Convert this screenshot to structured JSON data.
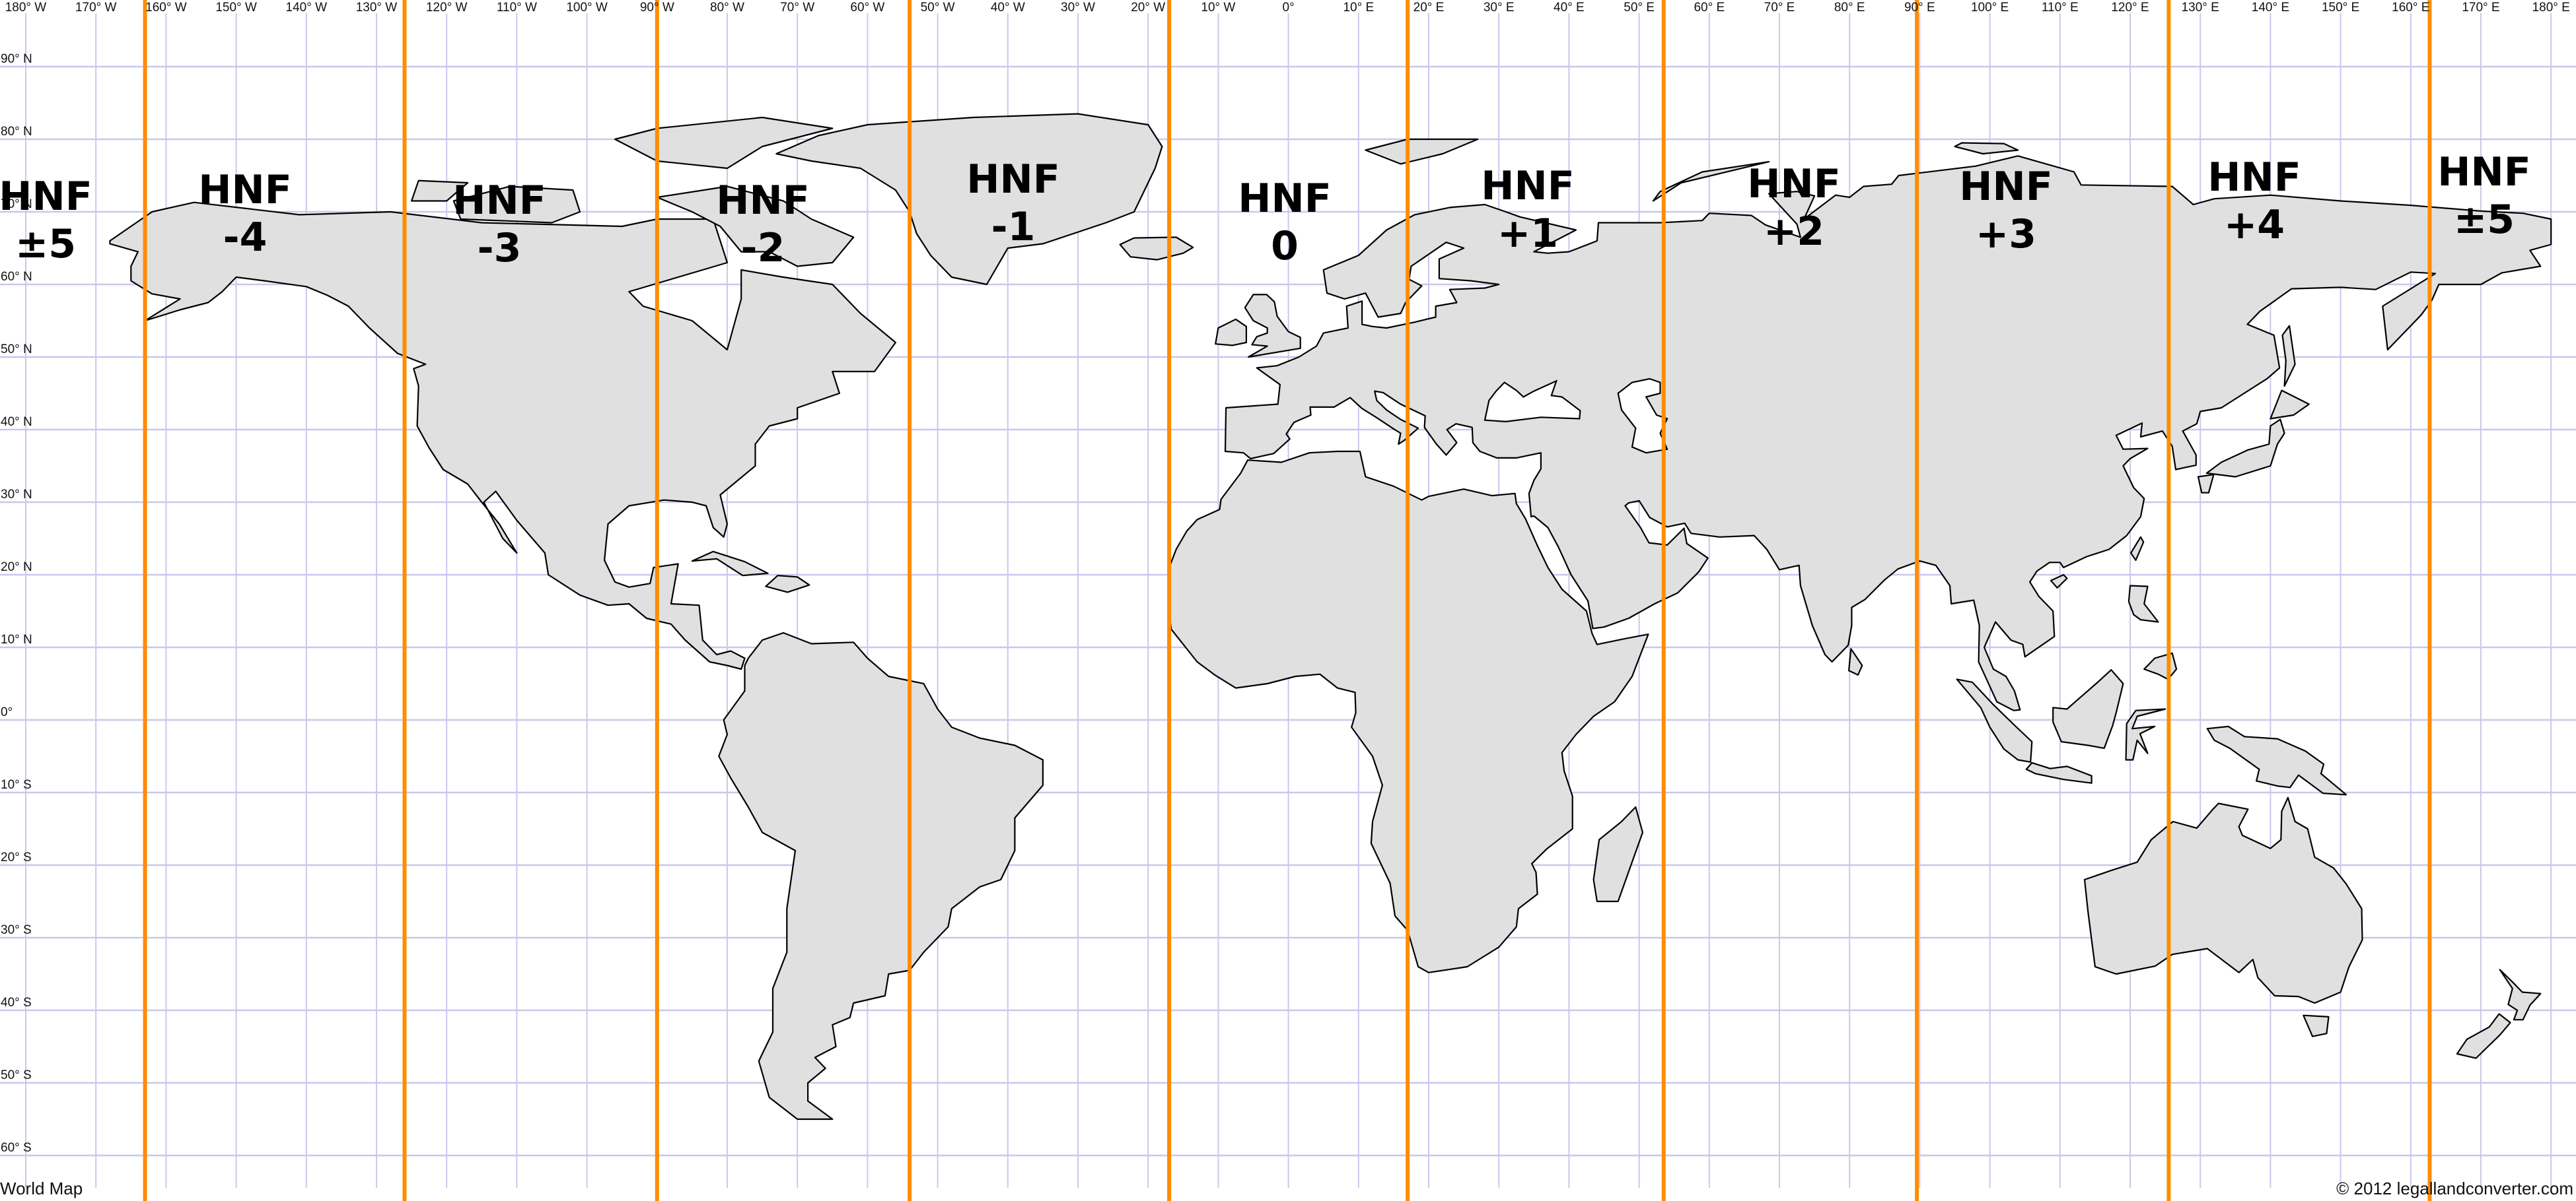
{
  "map": {
    "title": "World Map",
    "copyright": "© 2012 legallandconverter.com",
    "colors": {
      "land": "#e0e0e0",
      "coast": "#000000",
      "grid": "#c8c8ee",
      "zone_boundary": "#ff8c00",
      "water": "#ffffff"
    },
    "longitude_labels": [
      "180° W",
      "170° W",
      "160° W",
      "150° W",
      "140° W",
      "130° W",
      "120° W",
      "110° W",
      "100° W",
      "90° W",
      "80° W",
      "70° W",
      "60° W",
      "50° W",
      "40° W",
      "30° W",
      "20° W",
      "10° W",
      "0°",
      "10° E",
      "20° E",
      "30° E",
      "40° E",
      "50° E",
      "60° E",
      "70° E",
      "80° E",
      "90° E",
      "100° E",
      "110° E",
      "120° E",
      "130° E",
      "140° E",
      "150° E",
      "160° E",
      "170° E",
      "180° E"
    ],
    "latitude_labels": [
      "90° N",
      "80° N",
      "70° N",
      "60° N",
      "50° N",
      "40° N",
      "30° N",
      "20° N",
      "10° N",
      "0°",
      "10° S",
      "20° S",
      "30° S",
      "40° S",
      "50° S",
      "60° S"
    ],
    "zone_boundaries_lon": [
      -163,
      -126,
      -90,
      -54,
      -17,
      17,
      53.5,
      89.6,
      125.5,
      162.7
    ],
    "zones": [
      {
        "name": "HNF",
        "offset": "±5"
      },
      {
        "name": "HNF",
        "offset": "-4"
      },
      {
        "name": "HNF",
        "offset": "-3"
      },
      {
        "name": "HNF",
        "offset": "-2"
      },
      {
        "name": "HNF",
        "offset": "-1"
      },
      {
        "name": "HNF",
        "offset": "0"
      },
      {
        "name": "HNF",
        "offset": "+1"
      },
      {
        "name": "HNF",
        "offset": "+2"
      },
      {
        "name": "HNF",
        "offset": "+3"
      },
      {
        "name": "HNF",
        "offset": "+4"
      },
      {
        "name": "HNF",
        "offset": "±5"
      }
    ]
  }
}
